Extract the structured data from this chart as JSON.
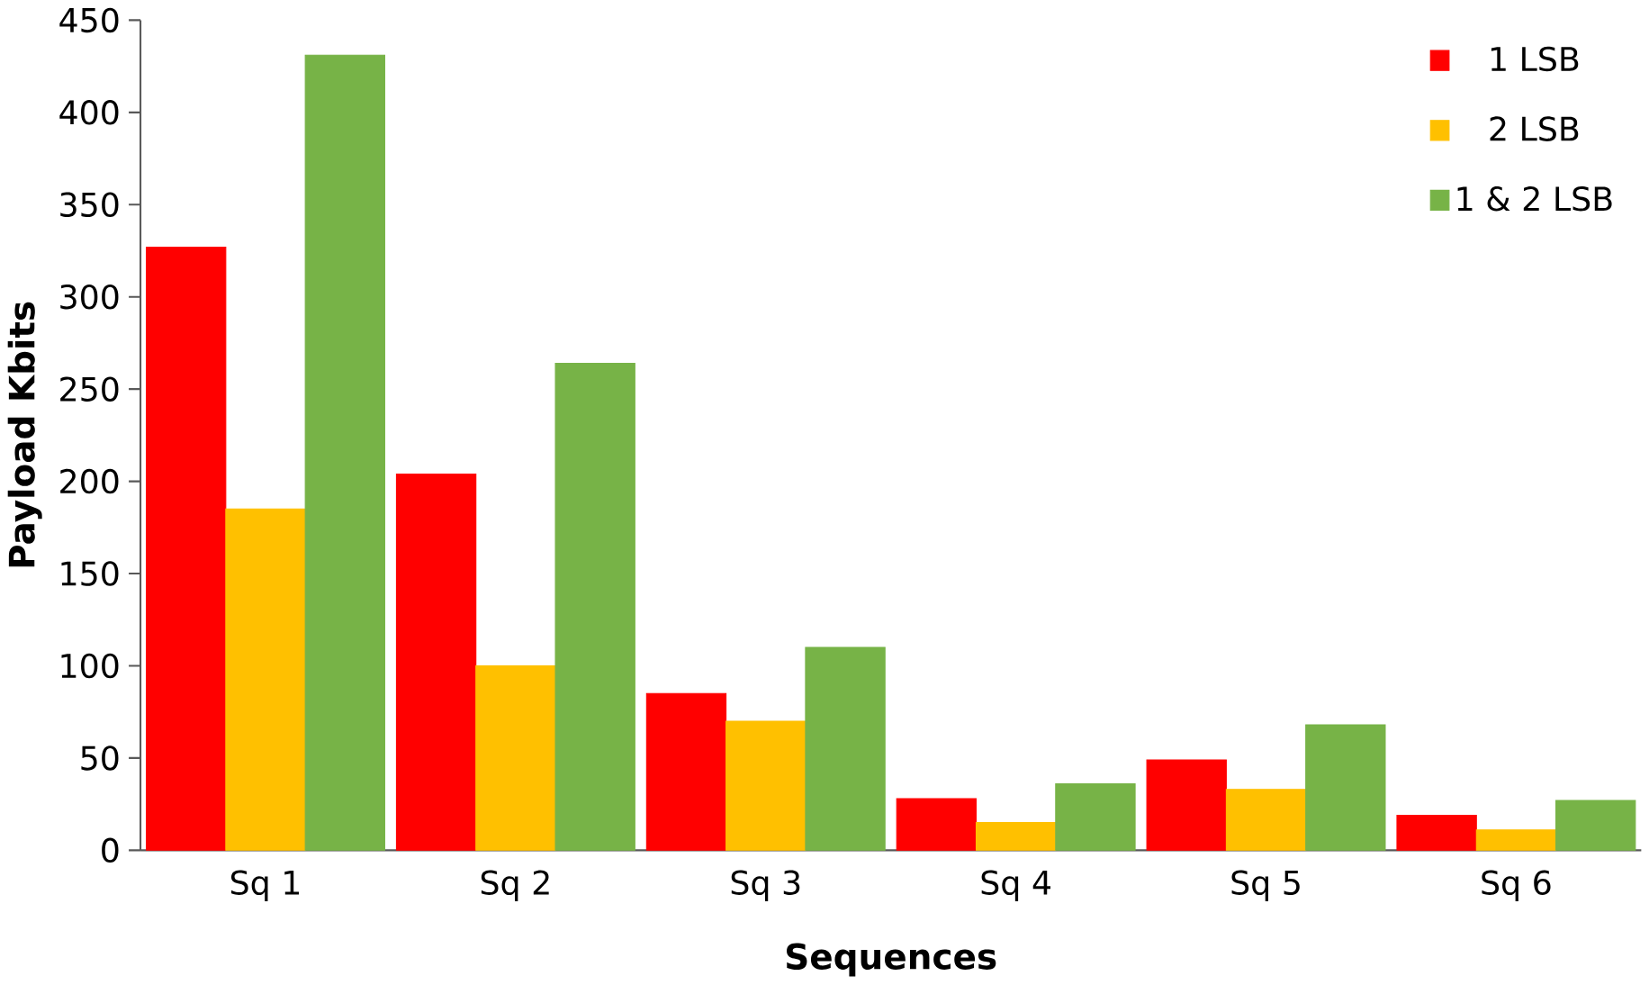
{
  "chart_data": {
    "type": "bar",
    "xlabel": "Sequences",
    "ylabel": "Payload Kbits",
    "categories": [
      "Sq 1",
      "Sq 2",
      "Sq 3",
      "Sq 4",
      "Sq 5",
      "Sq 6"
    ],
    "series": [
      {
        "name": "1 LSB",
        "color": "#ff0000",
        "values": [
          327,
          204,
          85,
          28,
          49,
          19
        ]
      },
      {
        "name": "2 LSB",
        "color": "#ffc000",
        "values": [
          185,
          100,
          70,
          15,
          33,
          11
        ]
      },
      {
        "name": "1 & 2 LSB",
        "color": "#77b347",
        "values": [
          431,
          264,
          110,
          36,
          68,
          27
        ]
      }
    ],
    "ylim": [
      0,
      450
    ],
    "yticks": [
      0,
      50,
      100,
      150,
      200,
      250,
      300,
      350,
      400,
      450
    ],
    "grid": false,
    "legend": "top right"
  }
}
